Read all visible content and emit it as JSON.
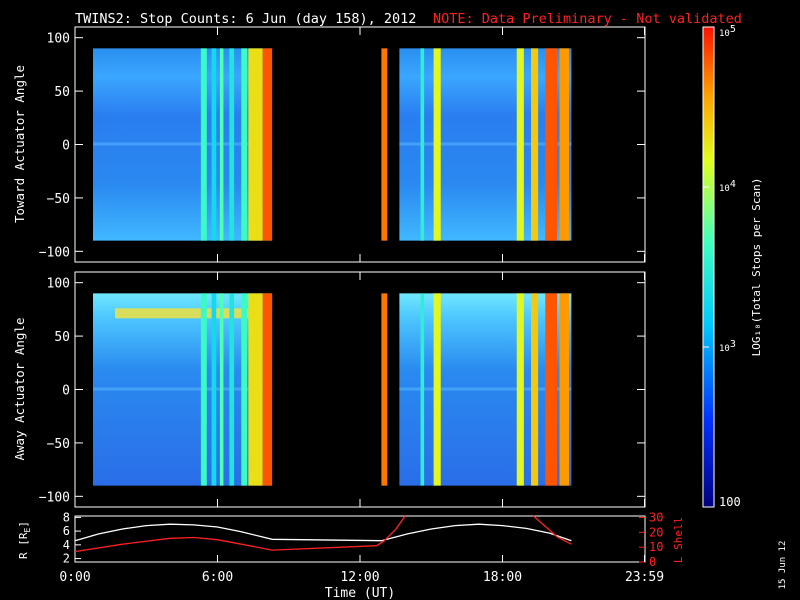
{
  "title": {
    "main": "TWINS2: Stop Counts:  6 Jun (day 158), 2012",
    "note": "NOTE: Data Preliminary - Not validated"
  },
  "stamp": "15 Jun 12",
  "colors": {
    "background": "#000000",
    "axis": "#ffffff",
    "note": "#ff2020",
    "lshell": "#ff2020",
    "radius": "#ffffff"
  },
  "chart_data": [
    {
      "type": "heatmap",
      "ylabel": "Toward Actuator Angle",
      "ylim": [
        -110,
        110
      ],
      "y_ticks": [
        "100",
        "50",
        "0",
        "−50",
        "−100"
      ],
      "data_range_y": [
        -90,
        90
      ],
      "x_ticks": [
        "",
        "",
        "",
        "",
        ""
      ],
      "segments_hours": [
        [
          0.0,
          8.3
        ],
        [
          12.9,
          20.9
        ]
      ],
      "vertical_bands": [
        {
          "t": 5.3,
          "w": 0.25,
          "log_counts": 3.6
        },
        {
          "t": 5.75,
          "w": 0.2,
          "log_counts": 3.3
        },
        {
          "t": 6.1,
          "w": 0.15,
          "log_counts": 3.7
        },
        {
          "t": 6.5,
          "w": 0.2,
          "log_counts": 3.4
        },
        {
          "t": 7.0,
          "w": 0.25,
          "log_counts": 3.6
        },
        {
          "t": 7.3,
          "w": 0.6,
          "log_counts": 4.3
        },
        {
          "t": 7.9,
          "w": 0.4,
          "log_counts": 4.8
        },
        {
          "t": 12.9,
          "w": 0.25,
          "log_counts": 4.7
        },
        {
          "t": 14.55,
          "w": 0.15,
          "log_counts": 3.5
        },
        {
          "t": 15.1,
          "w": 0.3,
          "log_counts": 4.2
        },
        {
          "t": 18.6,
          "w": 0.3,
          "log_counts": 4.2
        },
        {
          "t": 19.2,
          "w": 0.3,
          "log_counts": 4.4
        },
        {
          "t": 19.8,
          "w": 0.5,
          "log_counts": 4.8
        },
        {
          "t": 20.4,
          "w": 0.4,
          "log_counts": 4.6
        }
      ]
    },
    {
      "type": "heatmap",
      "ylabel": "Away Actuator Angle",
      "ylim": [
        -110,
        110
      ],
      "y_ticks": [
        "100",
        "50",
        "0",
        "−50",
        "−100"
      ],
      "data_range_y": [
        -90,
        90
      ],
      "x_ticks": [
        "",
        "",
        "",
        "",
        ""
      ],
      "segments_hours": [
        [
          0.0,
          8.3
        ],
        [
          12.9,
          20.9
        ]
      ],
      "vertical_bands": [
        {
          "t": 5.3,
          "w": 0.25,
          "log_counts": 3.6
        },
        {
          "t": 5.75,
          "w": 0.2,
          "log_counts": 3.3
        },
        {
          "t": 6.1,
          "w": 0.15,
          "log_counts": 3.7
        },
        {
          "t": 6.5,
          "w": 0.2,
          "log_counts": 3.4
        },
        {
          "t": 7.0,
          "w": 0.25,
          "log_counts": 3.6
        },
        {
          "t": 7.3,
          "w": 0.6,
          "log_counts": 4.3
        },
        {
          "t": 7.9,
          "w": 0.4,
          "log_counts": 4.8
        },
        {
          "t": 12.9,
          "w": 0.25,
          "log_counts": 4.7
        },
        {
          "t": 14.55,
          "w": 0.15,
          "log_counts": 3.5
        },
        {
          "t": 15.1,
          "w": 0.3,
          "log_counts": 4.2
        },
        {
          "t": 18.6,
          "w": 0.3,
          "log_counts": 4.2
        },
        {
          "t": 19.2,
          "w": 0.3,
          "log_counts": 4.4
        },
        {
          "t": 19.8,
          "w": 0.5,
          "log_counts": 4.8
        },
        {
          "t": 20.4,
          "w": 0.4,
          "log_counts": 4.6
        }
      ]
    },
    {
      "type": "line",
      "xlabel": "Time (UT)",
      "x_ticks": [
        "0:00",
        "6:00",
        "12:00",
        "18:00",
        "23:59"
      ],
      "y_left_label": "R [R_E]",
      "y_left_ticks": [
        "8",
        "6",
        "4",
        "2"
      ],
      "ylim_left": [
        1.5,
        8.2
      ],
      "y_right_label": "L Shell",
      "y_right_ticks": [
        "30",
        "20",
        "10",
        "0"
      ],
      "ylim_right": [
        0,
        31
      ],
      "series": [
        {
          "name": "R [R_E]",
          "axis": "left",
          "x": [
            0.0,
            1.0,
            2.0,
            3.0,
            4.0,
            5.0,
            6.0,
            7.0,
            8.3,
            12.9,
            14.0,
            15.0,
            16.0,
            17.0,
            18.0,
            19.0,
            20.0,
            20.9
          ],
          "y": [
            4.6,
            5.6,
            6.3,
            6.8,
            7.0,
            6.9,
            6.6,
            5.9,
            4.8,
            4.6,
            5.6,
            6.3,
            6.8,
            7.0,
            6.8,
            6.4,
            5.7,
            4.6
          ]
        },
        {
          "name": "L Shell",
          "axis": "right",
          "x": [
            0.0,
            2.0,
            4.0,
            5.0,
            6.0,
            7.0,
            8.3,
            12.7,
            13.0,
            13.5,
            13.9
          ],
          "y": [
            7,
            12,
            16,
            16.5,
            15,
            12,
            8,
            11,
            14,
            22,
            31
          ]
        },
        {
          "name": "L Shell",
          "axis": "right",
          "x": [
            19.3,
            19.8,
            20.3,
            20.9
          ],
          "y": [
            31,
            24,
            17,
            12
          ]
        }
      ]
    }
  ],
  "colorbar": {
    "label": "LOG₁₀(Total Stops per Scan)",
    "ticks": [
      {
        "base": "10",
        "exp": "5"
      },
      {
        "base": "10",
        "exp": "4"
      },
      {
        "base": "10",
        "exp": "3"
      },
      {
        "base": "100",
        "exp": ""
      }
    ],
    "range_log": [
      2,
      5
    ]
  }
}
